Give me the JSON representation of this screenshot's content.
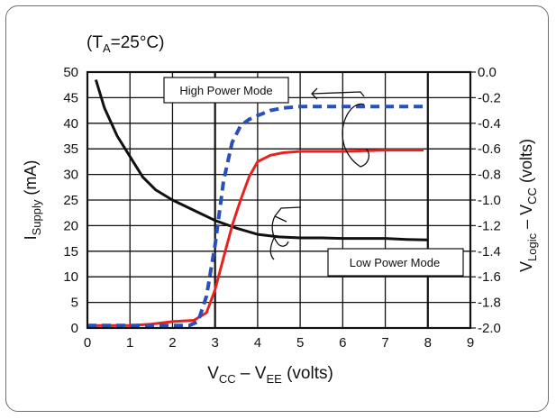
{
  "chart_data": {
    "type": "line",
    "condition_annotation": {
      "prefix": "(T",
      "sub": "A",
      "suffix": "=25°C)"
    },
    "xlabel": {
      "a": "V",
      "a_sub": "CC",
      "mid": " – V",
      "b_sub": "EE",
      "suffix": " (volts)"
    },
    "ylabel_left": {
      "a": "I",
      "a_sub": "Supply",
      "suffix": " (mA)"
    },
    "ylabel_right": {
      "a": "V",
      "a_sub": "Logic",
      "mid": " – V",
      "b_sub": "CC",
      "suffix": " (volts)"
    },
    "x_ticks": [
      "0",
      "1",
      "2",
      "3",
      "4",
      "5",
      "6",
      "7",
      "8",
      "9"
    ],
    "y_left_ticks": [
      "0",
      "5",
      "10",
      "15",
      "20",
      "25",
      "30",
      "35",
      "40",
      "45",
      "50"
    ],
    "y_right_ticks": [
      "0.0",
      "-0.2",
      "-0.4",
      "-0.6",
      "-0.8",
      "-1.0",
      "-1.2",
      "-1.4",
      "-1.6",
      "-1.8",
      "-2.0"
    ],
    "xlim": [
      0,
      9
    ],
    "ylim_left": [
      0,
      50
    ],
    "ylim_right": [
      -2.0,
      0.0
    ],
    "grid": true,
    "colors": {
      "black_curve": "#111111",
      "red_curve": "#e8231f",
      "blue_curve": "#2b4fb8"
    },
    "annotations": {
      "high_power": "High Power Mode",
      "low_power": "Low Power Mode"
    },
    "series": [
      {
        "axis": "left",
        "style": "solid",
        "color": "#111111",
        "x": [
          0.2,
          0.4,
          0.7,
          1.0,
          1.3,
          1.6,
          2.0,
          2.5,
          3.0,
          3.5,
          4.0,
          4.5,
          5.0,
          5.5,
          6.0,
          6.5,
          7.0,
          7.5,
          8.0
        ],
        "y": [
          48.5,
          43.0,
          37.5,
          33.5,
          29.5,
          27.0,
          25.0,
          23.0,
          21.0,
          19.5,
          18.3,
          17.8,
          17.6,
          17.6,
          17.5,
          17.5,
          17.5,
          17.3,
          17.2
        ]
      },
      {
        "axis": "right",
        "style": "solid",
        "color": "#e8231f",
        "x": [
          0.0,
          0.5,
          1.0,
          1.5,
          2.0,
          2.5,
          2.8,
          3.0,
          3.2,
          3.4,
          3.6,
          3.8,
          4.0,
          4.3,
          4.6,
          5.0,
          5.5,
          6.0,
          7.0,
          7.9
        ],
        "y": [
          -1.98,
          -1.98,
          -1.98,
          -1.97,
          -1.95,
          -1.94,
          -1.88,
          -1.7,
          -1.45,
          -1.2,
          -1.0,
          -0.82,
          -0.7,
          -0.65,
          -0.63,
          -0.62,
          -0.62,
          -0.62,
          -0.61,
          -0.61
        ]
      },
      {
        "axis": "right",
        "style": "dashed",
        "color": "#2b4fb8",
        "x": [
          0.0,
          0.5,
          1.0,
          1.5,
          2.0,
          2.4,
          2.6,
          2.8,
          3.0,
          3.2,
          3.4,
          3.6,
          3.8,
          4.0,
          4.3,
          4.6,
          5.0,
          6.0,
          7.0,
          7.9
        ],
        "y": [
          -1.98,
          -1.98,
          -1.98,
          -1.98,
          -1.98,
          -1.98,
          -1.95,
          -1.75,
          -1.35,
          -0.85,
          -0.55,
          -0.42,
          -0.37,
          -0.34,
          -0.3,
          -0.28,
          -0.27,
          -0.27,
          -0.27,
          -0.27
        ]
      }
    ]
  }
}
